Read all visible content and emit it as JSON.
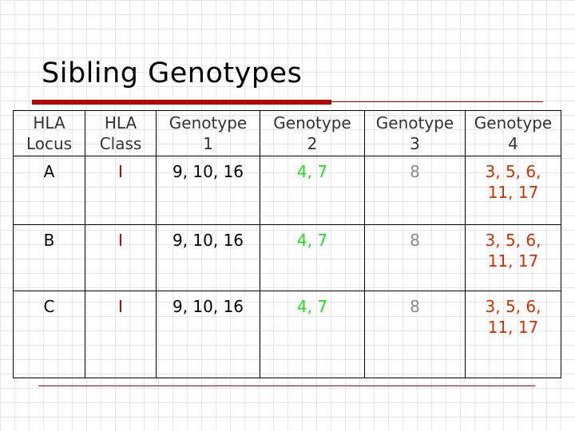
{
  "slide": {
    "title": "Sibling Genotypes"
  },
  "table": {
    "headers": [
      {
        "line1": "HLA",
        "line2": "Locus"
      },
      {
        "line1": "HLA",
        "line2": "Class"
      },
      {
        "line1": "Genotype",
        "line2": "1"
      },
      {
        "line1": "Genotype",
        "line2": "2"
      },
      {
        "line1": "Genotype",
        "line2": "3"
      },
      {
        "line1": "Genotype",
        "line2": "4"
      }
    ],
    "rows": [
      {
        "locus": "A",
        "class": "I",
        "g1": "9, 10, 16",
        "g2": "4, 7",
        "g3": "8",
        "g4_line1": "3, 5, 6,",
        "g4_line2": "11, 17"
      },
      {
        "locus": "B",
        "class": "I",
        "g1": "9, 10, 16",
        "g2": "4, 7",
        "g3": "8",
        "g4_line1": "3, 5, 6,",
        "g4_line2": "11, 17"
      },
      {
        "locus": "C",
        "class": "I",
        "g1": "9, 10, 16",
        "g2": "4, 7",
        "g3": "8",
        "g4_line1": "3, 5, 6,",
        "g4_line2": "11, 17"
      }
    ]
  },
  "colors": {
    "accent_rule": "#c00000",
    "class_text": "#c00000",
    "genotype2_text": "#22dd22",
    "genotype3_text": "#8a8a8a",
    "genotype4_text": "#cc3300"
  }
}
